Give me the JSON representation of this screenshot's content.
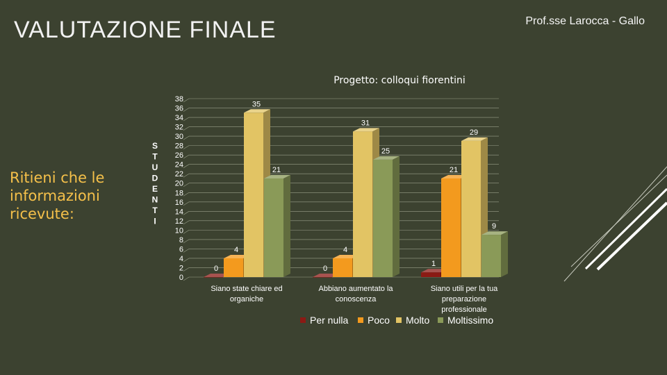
{
  "slide": {
    "title": "VALUTAZIONE FINALE",
    "author": "Prof.sse  Larocca - Gallo",
    "question": "Ritieni che le informazioni ricevute:"
  },
  "colors": {
    "background": "#3c4230",
    "question_text": "#f5c04a",
    "per_nulla": "#8b1a14",
    "poco": "#f39a1e",
    "molto": "#e2c464",
    "moltissimo": "#8a9a58"
  },
  "chart_data": {
    "type": "bar",
    "title": "Progetto:  colloqui fiorentini",
    "ylabel": "STUDENTI",
    "ylim": [
      0,
      38
    ],
    "y_ticks": [
      0,
      2,
      4,
      6,
      8,
      10,
      12,
      14,
      16,
      18,
      20,
      22,
      24,
      26,
      28,
      30,
      32,
      34,
      36,
      38
    ],
    "grid": true,
    "legend": "bottom",
    "categories": [
      "Siano state chiare ed organiche",
      "Abbiano aumentato la conoscenza",
      "Siano utili per la tua preparazione professionale"
    ],
    "series": [
      {
        "name": "Per nulla",
        "values": [
          0,
          0,
          1
        ]
      },
      {
        "name": "Poco",
        "values": [
          4,
          4,
          21
        ]
      },
      {
        "name": "Molto",
        "values": [
          35,
          31,
          29
        ]
      },
      {
        "name": "Moltissimo",
        "values": [
          21,
          25,
          9
        ]
      }
    ]
  }
}
